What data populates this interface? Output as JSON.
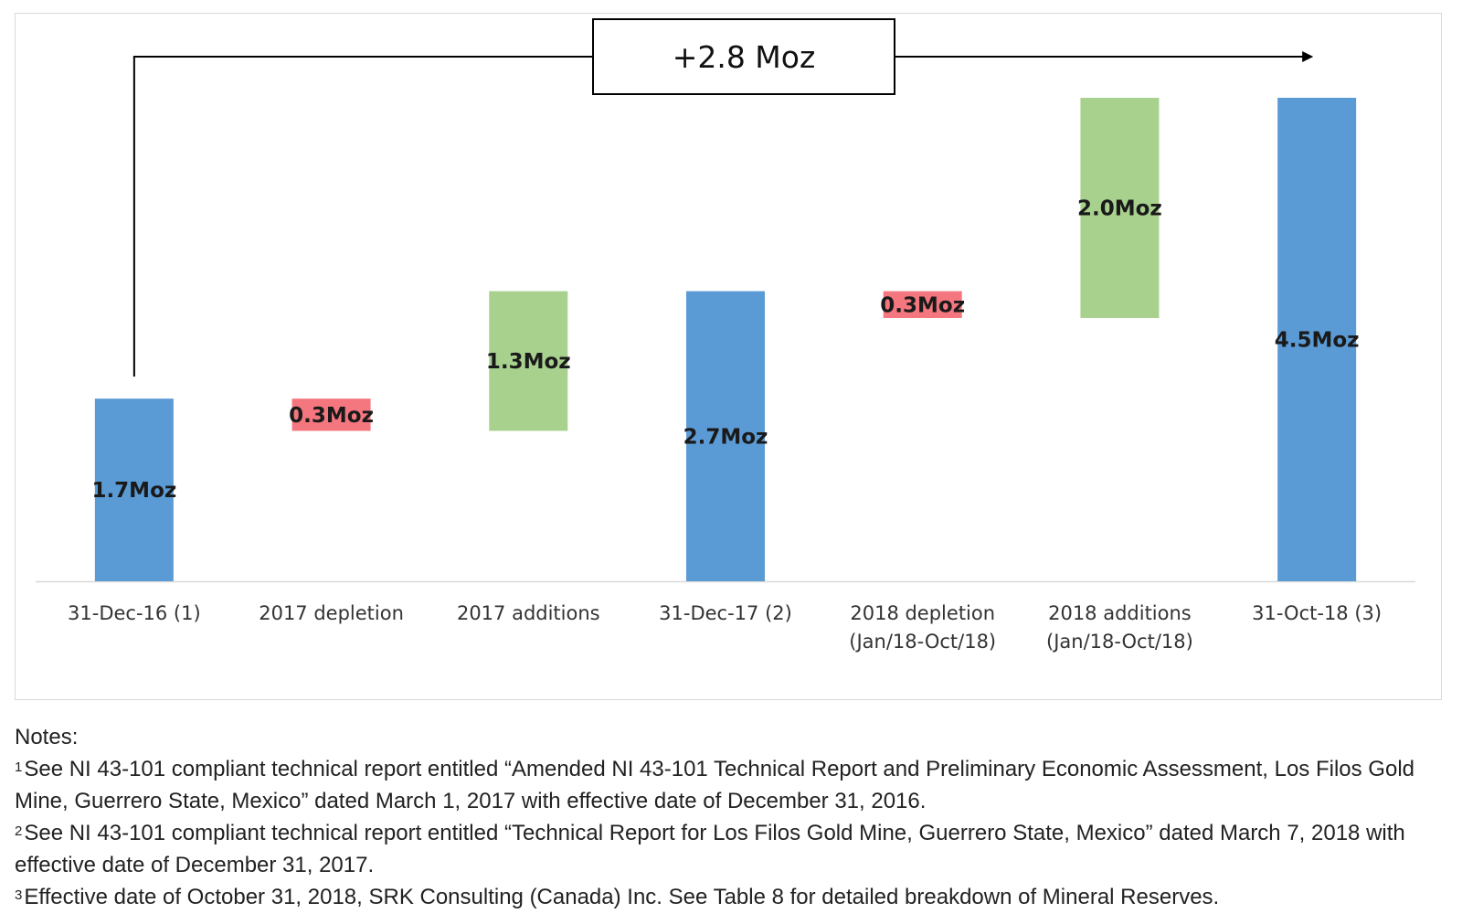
{
  "chart_data": {
    "type": "waterfall",
    "unit": "Moz",
    "categories": [
      [
        "31-Dec-16 (1)"
      ],
      [
        "2017 depletion"
      ],
      [
        "2017 additions"
      ],
      [
        "31-Dec-17 (2)"
      ],
      [
        "2018 depletion",
        "(Jan/18-Oct/18)"
      ],
      [
        "2018 additions",
        "(Jan/18-Oct/18)"
      ],
      [
        "31-Oct-18 (3)"
      ]
    ],
    "steps": [
      {
        "kind": "total",
        "start": 0,
        "end": 1.7,
        "label": "1.7Moz"
      },
      {
        "kind": "decrease",
        "start": 1.7,
        "end": 1.4,
        "label": "0.3Moz"
      },
      {
        "kind": "increase",
        "start": 1.4,
        "end": 2.7,
        "label": "1.3Moz"
      },
      {
        "kind": "total",
        "start": 0,
        "end": 2.7,
        "label": "2.7Moz"
      },
      {
        "kind": "decrease",
        "start": 2.7,
        "end": 2.45,
        "label": "0.3Moz"
      },
      {
        "kind": "increase",
        "start": 2.45,
        "end": 4.5,
        "label": "2.0Moz"
      },
      {
        "kind": "total",
        "start": 0,
        "end": 4.5,
        "label": "4.5Moz"
      }
    ],
    "ylim": [
      0,
      4.5
    ],
    "grid": false,
    "colors": {
      "total": "#5b9bd5",
      "increase": "#a9d18e",
      "decrease": "#f4777f"
    },
    "change_annotation": {
      "text": "+2.8 Moz",
      "from_index": 0,
      "to_index": 6
    }
  },
  "notes": {
    "heading": "Notes:",
    "items": [
      {
        "marker": "1",
        "text": "See NI 43-101 compliant technical report entitled “Amended NI 43-101 Technical Report and Preliminary Economic Assessment, Los Filos Gold Mine, Guerrero State, Mexico” dated March 1, 2017 with effective date of December 31, 2016."
      },
      {
        "marker": "2",
        "text": "See NI 43-101 compliant technical report entitled “Technical Report for Los Filos Gold Mine, Guerrero State, Mexico” dated March 7, 2018 with effective date of December 31, 2017."
      },
      {
        "marker": "3",
        "text": "Effective date of October 31, 2018, SRK Consulting (Canada) Inc. See Table 8 for detailed breakdown of Mineral Reserves."
      }
    ]
  }
}
